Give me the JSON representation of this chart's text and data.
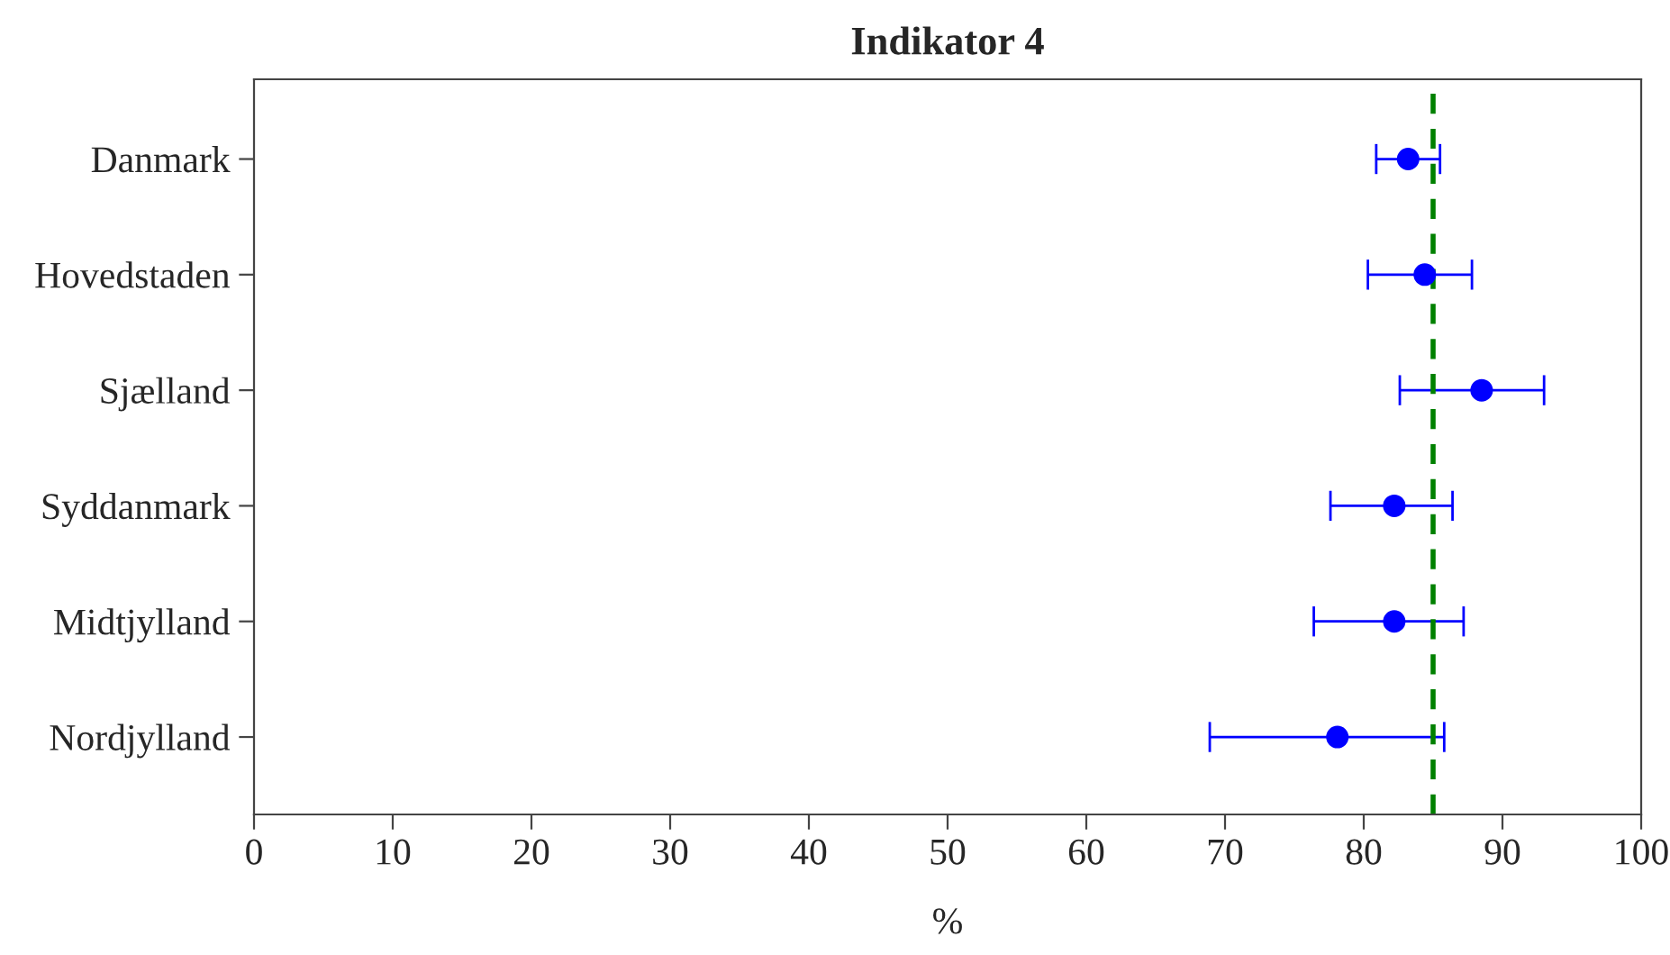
{
  "chart_data": {
    "type": "scatter",
    "orientation": "horizontal",
    "title": "Indikator 4",
    "xlabel": "%",
    "categories": [
      "Danmark",
      "Hovedstaden",
      "Sjælland",
      "Syddanmark",
      "Midtjylland",
      "Nordjylland"
    ],
    "values": [
      83.2,
      84.4,
      88.5,
      82.2,
      82.2,
      78.1
    ],
    "errors": [
      [
        80.9,
        85.5
      ],
      [
        80.3,
        87.8
      ],
      [
        82.6,
        93.0
      ],
      [
        77.6,
        86.4
      ],
      [
        76.4,
        87.2
      ],
      [
        68.9,
        85.8
      ]
    ],
    "color": "#0000ff",
    "marker": "circle",
    "xlim": [
      0,
      100
    ],
    "xticks": [
      0,
      10,
      20,
      30,
      40,
      50,
      60,
      70,
      80,
      90,
      100
    ],
    "ref_lines": [
      {
        "axis": "x",
        "value": 85,
        "color": "#008000",
        "line_style": "dashed"
      }
    ],
    "grid": false,
    "legend": false
  }
}
